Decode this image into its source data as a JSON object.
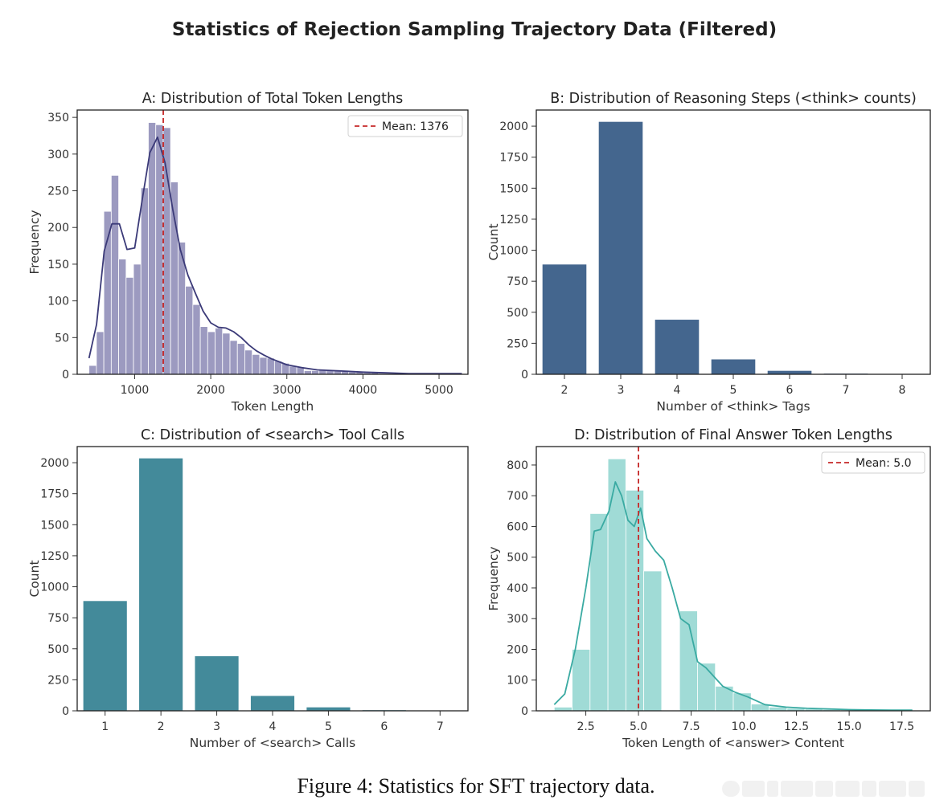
{
  "suptitle": "Statistics of Rejection Sampling Trajectory Data (Filtered)",
  "caption": "Figure 4: Statistics for SFT trajectory data.",
  "chart_data": [
    {
      "id": "A",
      "type": "bar",
      "subtype": "histogram",
      "title": "A: Distribution of Total Token Lengths",
      "xlabel": "Token Length",
      "ylabel": "Frequency",
      "xlim": [
        245,
        5380
      ],
      "ylim": [
        0,
        360
      ],
      "xticks": [
        1000,
        2000,
        3000,
        4000,
        5000
      ],
      "yticks": [
        0,
        50,
        100,
        150,
        200,
        250,
        300,
        350
      ],
      "bin_width": 97.5,
      "bin_start": 400,
      "values": [
        12,
        58,
        222,
        271,
        157,
        132,
        150,
        254,
        343,
        340,
        336,
        262,
        180,
        120,
        95,
        65,
        58,
        63,
        56,
        46,
        42,
        33,
        27,
        23,
        22,
        18,
        15,
        11,
        10,
        5,
        5,
        6,
        6,
        6,
        4,
        3,
        3,
        2,
        2,
        1,
        1,
        1,
        1,
        1,
        1,
        1,
        2,
        2,
        2
      ],
      "kde": [
        [
          400,
          22
        ],
        [
          500,
          68
        ],
        [
          600,
          168
        ],
        [
          700,
          205
        ],
        [
          800,
          205
        ],
        [
          900,
          170
        ],
        [
          1000,
          172
        ],
        [
          1100,
          238
        ],
        [
          1200,
          302
        ],
        [
          1300,
          323
        ],
        [
          1400,
          288
        ],
        [
          1500,
          225
        ],
        [
          1600,
          170
        ],
        [
          1700,
          135
        ],
        [
          1800,
          110
        ],
        [
          1900,
          86
        ],
        [
          2000,
          70
        ],
        [
          2100,
          64
        ],
        [
          2200,
          63
        ],
        [
          2300,
          58
        ],
        [
          2400,
          50
        ],
        [
          2500,
          40
        ],
        [
          2600,
          32
        ],
        [
          2700,
          26
        ],
        [
          2800,
          21
        ],
        [
          2900,
          17
        ],
        [
          3000,
          13
        ],
        [
          3200,
          9
        ],
        [
          3400,
          6
        ],
        [
          3600,
          5
        ],
        [
          3800,
          4
        ],
        [
          4000,
          3
        ],
        [
          4300,
          2
        ],
        [
          4600,
          1
        ],
        [
          5000,
          1
        ],
        [
          5300,
          1
        ]
      ],
      "kde_color": "#3b3a78",
      "mean": 1376,
      "mean_label": "Mean: 1376",
      "color": "#9c9ac0"
    },
    {
      "id": "B",
      "type": "bar",
      "title": "B: Distribution of Reasoning Steps (<think> counts)",
      "xlabel": "Number of <think> Tags",
      "ylabel": "Count",
      "categories": [
        "2",
        "3",
        "4",
        "5",
        "6",
        "7",
        "8"
      ],
      "values": [
        885,
        2035,
        440,
        120,
        28,
        5,
        2
      ],
      "ylim": [
        0,
        2130
      ],
      "yticks": [
        0,
        250,
        500,
        750,
        1000,
        1250,
        1500,
        1750,
        2000
      ],
      "color": "#44668e"
    },
    {
      "id": "C",
      "type": "bar",
      "title": "C: Distribution of <search> Tool Calls",
      "xlabel": "Number of <search> Calls",
      "ylabel": "Count",
      "categories": [
        "1",
        "2",
        "3",
        "4",
        "5",
        "6",
        "7"
      ],
      "values": [
        885,
        2035,
        440,
        120,
        28,
        5,
        2
      ],
      "ylim": [
        0,
        2130
      ],
      "yticks": [
        0,
        250,
        500,
        750,
        1000,
        1250,
        1500,
        1750,
        2000
      ],
      "color": "#438a9a"
    },
    {
      "id": "D",
      "type": "bar",
      "subtype": "histogram",
      "title": "D: Distribution of Final Answer Token Lengths",
      "xlabel": "Token Length of <answer> Content",
      "ylabel": "Frequency",
      "xlim": [
        0.15,
        18.85
      ],
      "ylim": [
        0,
        860
      ],
      "xticks": [
        2.5,
        5.0,
        7.5,
        10.0,
        12.5,
        15.0,
        17.5
      ],
      "xtick_labels": [
        "2.5",
        "5.0",
        "7.5",
        "10.0",
        "12.5",
        "15.0",
        "17.5"
      ],
      "yticks": [
        0,
        100,
        200,
        300,
        400,
        500,
        600,
        700,
        800
      ],
      "bin_width": 0.85,
      "bin_start": 1.0,
      "values": [
        12,
        200,
        642,
        820,
        718,
        455,
        0,
        325,
        155,
        80,
        58,
        22,
        12,
        8,
        6,
        4,
        3,
        2,
        2,
        1,
        1,
        1
      ],
      "kde": [
        [
          1.0,
          20
        ],
        [
          1.5,
          55
        ],
        [
          2.0,
          200
        ],
        [
          2.5,
          400
        ],
        [
          2.9,
          585
        ],
        [
          3.2,
          590
        ],
        [
          3.6,
          650
        ],
        [
          3.9,
          745
        ],
        [
          4.2,
          700
        ],
        [
          4.5,
          620
        ],
        [
          4.8,
          600
        ],
        [
          5.1,
          660
        ],
        [
          5.4,
          560
        ],
        [
          5.8,
          520
        ],
        [
          6.2,
          490
        ],
        [
          6.6,
          400
        ],
        [
          7.0,
          300
        ],
        [
          7.4,
          280
        ],
        [
          7.8,
          160
        ],
        [
          8.2,
          140
        ],
        [
          8.6,
          110
        ],
        [
          9.0,
          80
        ],
        [
          9.6,
          60
        ],
        [
          10.2,
          45
        ],
        [
          11,
          20
        ],
        [
          12,
          12
        ],
        [
          13,
          8
        ],
        [
          14,
          6
        ],
        [
          15,
          4
        ],
        [
          16,
          3
        ],
        [
          17,
          2
        ],
        [
          18,
          2
        ]
      ],
      "kde_color": "#3aaaa2",
      "mean": 5.0,
      "mean_label": "Mean: 5.0",
      "color": "#a0dbd6"
    }
  ]
}
